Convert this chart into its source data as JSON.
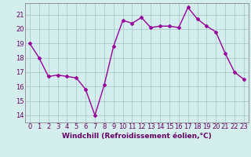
{
  "x": [
    0,
    1,
    2,
    3,
    4,
    5,
    6,
    7,
    8,
    9,
    10,
    11,
    12,
    13,
    14,
    15,
    16,
    17,
    18,
    19,
    20,
    21,
    22,
    23
  ],
  "y": [
    19,
    18,
    16.7,
    16.8,
    16.7,
    16.6,
    15.8,
    14.0,
    16.1,
    18.8,
    20.6,
    20.4,
    20.8,
    20.1,
    20.2,
    20.2,
    20.1,
    21.5,
    20.7,
    20.2,
    19.8,
    18.3,
    17.0,
    16.5
  ],
  "line_color": "#990099",
  "marker": "D",
  "marker_size": 2,
  "line_width": 1.0,
  "bg_color": "#d4eeee",
  "grid_color": "#aacccc",
  "xlabel": "Windchill (Refroidissement éolien,°C)",
  "xlabel_color": "#660066",
  "xlabel_fontsize": 6.5,
  "tick_color": "#660066",
  "tick_fontsize": 6,
  "ylim": [
    13.5,
    21.8
  ],
  "yticks": [
    14,
    15,
    16,
    17,
    18,
    19,
    20,
    21
  ],
  "xlim": [
    -0.5,
    23.5
  ],
  "xticks": [
    0,
    1,
    2,
    3,
    4,
    5,
    6,
    7,
    8,
    9,
    10,
    11,
    12,
    13,
    14,
    15,
    16,
    17,
    18,
    19,
    20,
    21,
    22,
    23
  ]
}
